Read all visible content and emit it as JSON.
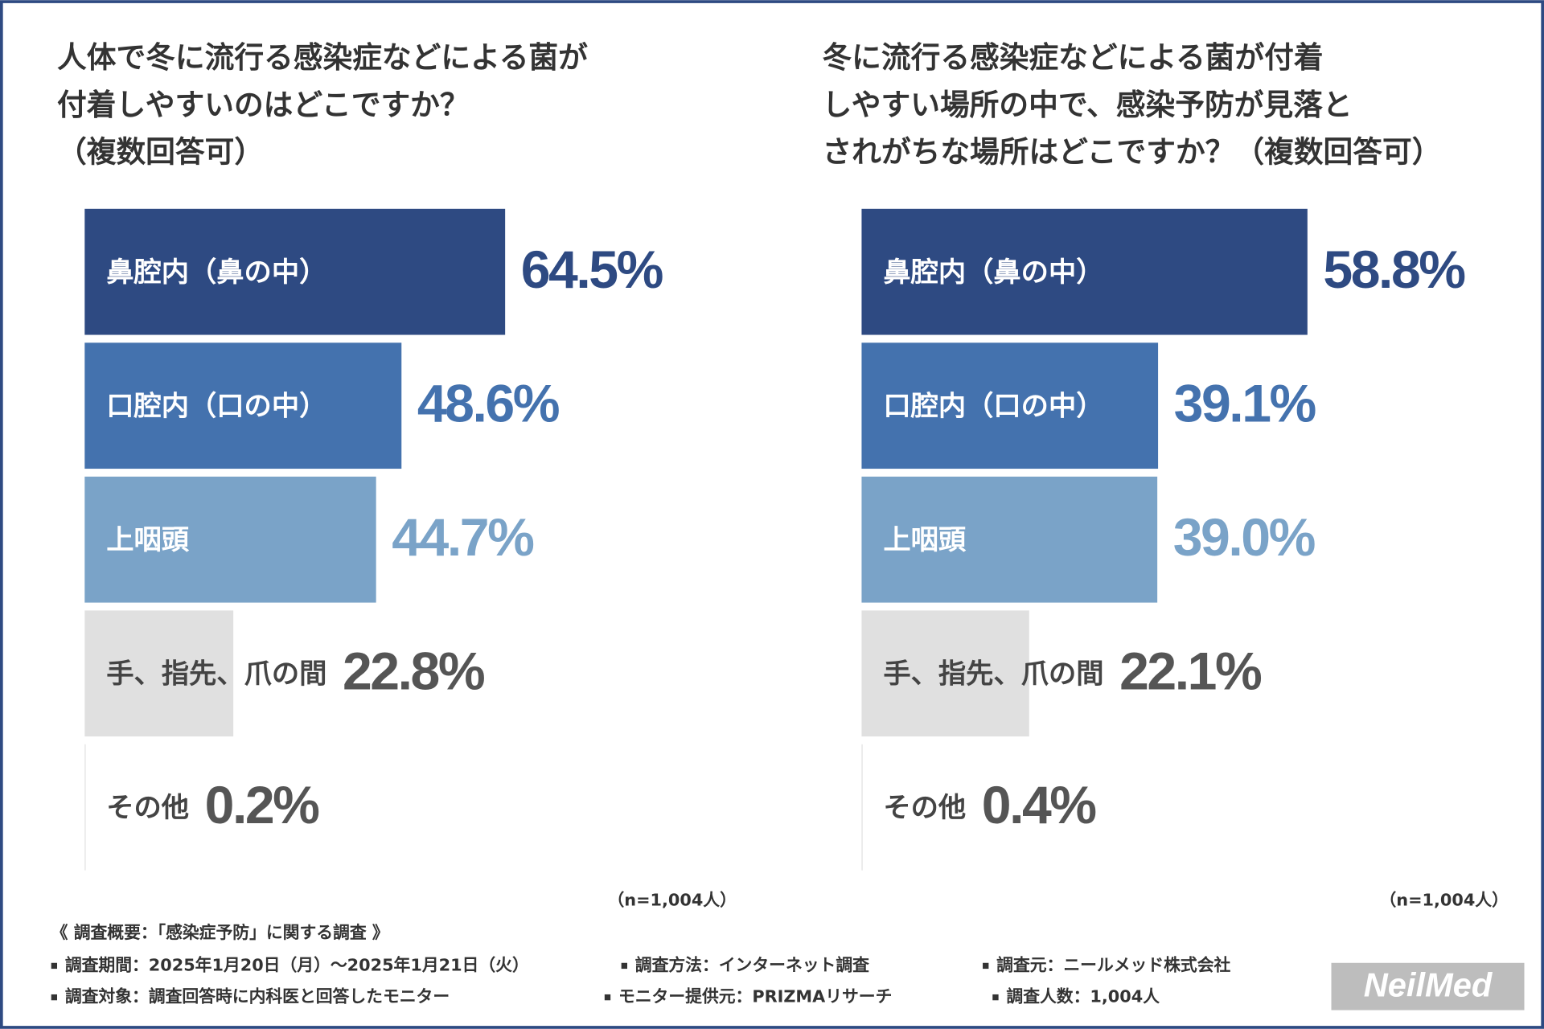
{
  "chart_data": [
    {
      "type": "bar",
      "orientation": "horizontal",
      "title": [
        "人体で冬に流行る感染症などによる菌が",
        "付着しやすいのはどこですか？",
        "（複数回答可）"
      ],
      "categories": [
        "鼻腔内（鼻の中）",
        "口腔内（口の中）",
        "上咽頭",
        "手、指先、爪の間",
        "その他"
      ],
      "values": [
        64.5,
        48.6,
        44.7,
        22.8,
        0.2
      ],
      "value_labels": [
        "64.5%",
        "48.6%",
        "44.7%",
        "22.8%",
        "0.2%"
      ],
      "colors": [
        "#2e4a82",
        "#4472ae",
        "#7aa3c8",
        "#e0e0e0",
        "#ffffff"
      ],
      "note": "（n=1,004人）"
    },
    {
      "type": "bar",
      "orientation": "horizontal",
      "title": [
        "冬に流行る感染症などによる菌が付着",
        "しやすい場所の中で、感染予防が見落と",
        "されがちな場所はどこですか？（複数回答可）"
      ],
      "categories": [
        "鼻腔内（鼻の中）",
        "口腔内（口の中）",
        "上咽頭",
        "手、指先、爪の間",
        "その他"
      ],
      "values": [
        58.8,
        39.1,
        39.0,
        22.1,
        0.4
      ],
      "value_labels": [
        "58.8%",
        "39.1%",
        "39.0%",
        "22.1%",
        "0.4%"
      ],
      "colors": [
        "#2e4a82",
        "#4472ae",
        "#7aa3c8",
        "#e0e0e0",
        "#ffffff"
      ],
      "note": "（n=1,004人）"
    }
  ],
  "footer": {
    "heading": "《 調査概要：「感染症予防」に関する調査 》",
    "items": [
      "調査期間：2025年1月20日（月）～2025年1月21日（火）",
      "調査方法：インターネット調査",
      "調査元：ニールメッド株式会社",
      "調査対象：調査回答時に内科医と回答したモニター",
      "モニター提供元：PRIZMAリサーチ",
      "調査人数：1,004人"
    ]
  },
  "logo": "NeilMed"
}
